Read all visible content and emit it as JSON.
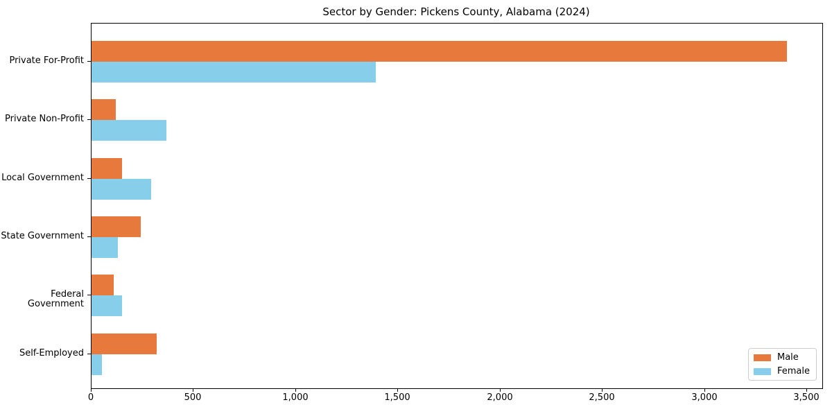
{
  "chart_data": {
    "type": "bar",
    "orientation": "horizontal",
    "title": "Sector by Gender: Pickens County, Alabama (2024)",
    "categories": [
      "Private For-Profit",
      "Private Non-Profit",
      "Local Government",
      "State Government",
      "Federal Government",
      "Self-Employed"
    ],
    "series": [
      {
        "name": "Male",
        "color": "#E8793D",
        "values": [
          3400,
          120,
          150,
          240,
          110,
          320
        ]
      },
      {
        "name": "Female",
        "color": "#87CEEB",
        "values": [
          1390,
          365,
          290,
          130,
          150,
          50
        ]
      }
    ],
    "xlabel": "",
    "ylabel": "",
    "xlim": [
      0,
      3575
    ],
    "xticks": [
      0,
      500,
      1000,
      1500,
      2000,
      2500,
      3000,
      3500
    ],
    "xtick_labels": [
      "0",
      "500",
      "1,000",
      "1,500",
      "2,000",
      "2,500",
      "3,000",
      "3,500"
    ],
    "grid": false,
    "legend_position": "lower right"
  }
}
